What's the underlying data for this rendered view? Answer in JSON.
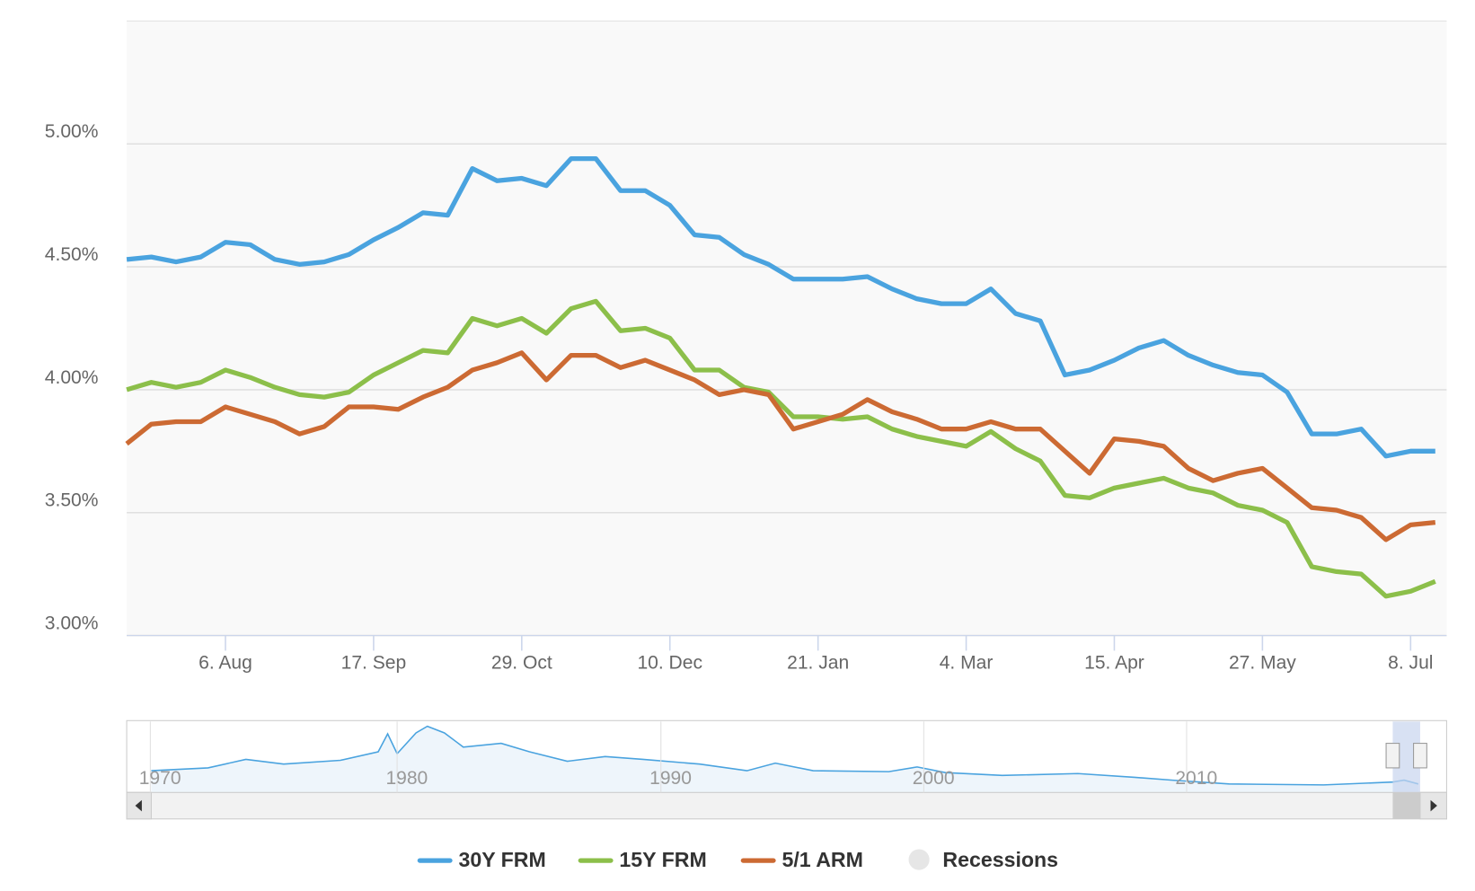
{
  "chart_data": {
    "type": "line",
    "categories": [
      null,
      null,
      null,
      null,
      "6. Aug",
      null,
      null,
      null,
      null,
      null,
      "17. Sep",
      null,
      null,
      null,
      null,
      null,
      "29. Oct",
      null,
      null,
      null,
      null,
      null,
      "10. Dec",
      null,
      null,
      null,
      null,
      null,
      "21. Jan",
      null,
      null,
      null,
      null,
      null,
      "4. Mar",
      null,
      null,
      null,
      null,
      null,
      "15. Apr",
      null,
      null,
      null,
      null,
      null,
      "27. May",
      null,
      null,
      null,
      null,
      null,
      "8. Jul",
      null
    ],
    "series": [
      {
        "name": "30Y FRM",
        "color": "#4aa3df",
        "values": [
          4.53,
          4.54,
          4.52,
          4.54,
          4.6,
          4.59,
          4.53,
          4.51,
          4.52,
          4.55,
          4.61,
          4.66,
          4.72,
          4.71,
          4.9,
          4.85,
          4.86,
          4.83,
          4.94,
          4.94,
          4.81,
          4.81,
          4.75,
          4.63,
          4.62,
          4.55,
          4.51,
          4.45,
          4.45,
          4.45,
          4.46,
          4.41,
          4.37,
          4.35,
          4.35,
          4.41,
          4.31,
          4.28,
          4.06,
          4.08,
          4.12,
          4.17,
          4.2,
          4.14,
          4.1,
          4.07,
          4.06,
          3.99,
          3.82,
          3.82,
          3.84,
          3.73,
          3.75,
          3.75
        ]
      },
      {
        "name": "15Y FRM",
        "color": "#8cbf4a",
        "values": [
          4.0,
          4.03,
          4.01,
          4.03,
          4.08,
          4.05,
          4.01,
          3.98,
          3.97,
          3.99,
          4.06,
          4.11,
          4.16,
          4.15,
          4.29,
          4.26,
          4.29,
          4.23,
          4.33,
          4.36,
          4.24,
          4.25,
          4.21,
          4.08,
          4.08,
          4.01,
          3.99,
          3.89,
          3.89,
          3.88,
          3.89,
          3.84,
          3.81,
          3.79,
          3.77,
          3.83,
          3.76,
          3.71,
          3.57,
          3.56,
          3.6,
          3.62,
          3.64,
          3.6,
          3.58,
          3.53,
          3.51,
          3.46,
          3.28,
          3.26,
          3.25,
          3.16,
          3.18,
          3.22
        ]
      },
      {
        "name": "5/1 ARM",
        "color": "#cc6a33",
        "values": [
          3.78,
          3.86,
          3.87,
          3.87,
          3.93,
          3.9,
          3.87,
          3.82,
          3.85,
          3.93,
          3.93,
          3.92,
          3.97,
          4.01,
          4.08,
          4.11,
          4.15,
          4.04,
          4.14,
          4.14,
          4.09,
          4.12,
          4.08,
          4.04,
          3.98,
          4.0,
          3.98,
          3.84,
          3.87,
          3.9,
          3.96,
          3.91,
          3.88,
          3.84,
          3.84,
          3.87,
          3.84,
          3.84,
          3.75,
          3.66,
          3.8,
          3.79,
          3.77,
          3.68,
          3.63,
          3.66,
          3.68,
          3.6,
          3.52,
          3.51,
          3.48,
          3.39,
          3.45,
          3.46
        ]
      }
    ],
    "recessions": {
      "name": "Recessions",
      "color": "#e6e6e6"
    },
    "ylim": [
      3,
      5.5
    ],
    "yticks": [
      {
        "value": 3,
        "label": "3.00%"
      },
      {
        "value": 3.5,
        "label": "3.50%"
      },
      {
        "value": 4,
        "label": "4.00%"
      },
      {
        "value": 4.5,
        "label": "4.50%"
      },
      {
        "value": 5,
        "label": "5.00%"
      }
    ],
    "grid": true,
    "legend": "bottom",
    "navigator": {
      "labels": [
        "1970",
        "1980",
        "1990",
        "2000",
        "2010"
      ]
    }
  }
}
